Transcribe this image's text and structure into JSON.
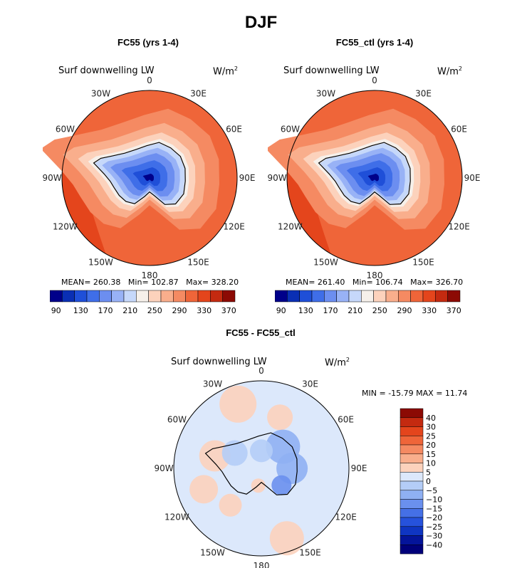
{
  "figure": {
    "title": "DJF"
  },
  "chart_data": [
    {
      "type": "heatmap",
      "title": "FC55 (yrs 1-4)",
      "variable": "Surf downwelling LW",
      "units_base": "W/m",
      "units_exp": "2",
      "projection": "south polar stereographic",
      "lon_labels": [
        "0",
        "30E",
        "60E",
        "90E",
        "120E",
        "150E",
        "180",
        "150W",
        "120W",
        "90W",
        "60W",
        "30W"
      ],
      "stats": {
        "mean_label": "MEAN=",
        "mean": "260.38",
        "min_label": "Min=",
        "min": "102.87",
        "max_label": "Max=",
        "max": "328.20"
      },
      "colorbar": {
        "levels": [
          90,
          110,
          130,
          150,
          170,
          190,
          210,
          230,
          250,
          270,
          290,
          310,
          330,
          350,
          370
        ],
        "labels": [
          "90",
          "130",
          "170",
          "210",
          "250",
          "290",
          "330",
          "370"
        ],
        "colors": [
          "#00008a",
          "#0a2fb4",
          "#1f4fd8",
          "#3f6ee8",
          "#6c8ef0",
          "#98b2f6",
          "#c6d8fa",
          "#f6f0ea",
          "#fcd2bc",
          "#f9ae8c",
          "#f58a62",
          "#ef6539",
          "#e4451c",
          "#c42a10",
          "#8c0a04"
        ]
      }
    },
    {
      "type": "heatmap",
      "title": "FC55_ctl (yrs 1-4)",
      "variable": "Surf downwelling LW",
      "units_base": "W/m",
      "units_exp": "2",
      "projection": "south polar stereographic",
      "lon_labels": [
        "0",
        "30E",
        "60E",
        "90E",
        "120E",
        "150E",
        "180",
        "150W",
        "120W",
        "90W",
        "60W",
        "30W"
      ],
      "stats": {
        "mean_label": "MEAN=",
        "mean": "261.40",
        "min_label": "Min=",
        "min": "106.74",
        "max_label": "Max=",
        "max": "326.70"
      },
      "colorbar": {
        "levels": [
          90,
          110,
          130,
          150,
          170,
          190,
          210,
          230,
          250,
          270,
          290,
          310,
          330,
          350,
          370
        ],
        "labels": [
          "90",
          "130",
          "170",
          "210",
          "250",
          "290",
          "330",
          "370"
        ],
        "colors": [
          "#00008a",
          "#0a2fb4",
          "#1f4fd8",
          "#3f6ee8",
          "#6c8ef0",
          "#98b2f6",
          "#c6d8fa",
          "#f6f0ea",
          "#fcd2bc",
          "#f9ae8c",
          "#f58a62",
          "#ef6539",
          "#e4451c",
          "#c42a10",
          "#8c0a04"
        ]
      }
    },
    {
      "type": "heatmap",
      "title": "FC55 - FC55_ctl",
      "variable": "Surf downwelling LW",
      "units_base": "W/m",
      "units_exp": "2",
      "projection": "south polar stereographic",
      "lon_labels": [
        "0",
        "30E",
        "60E",
        "90E",
        "120E",
        "150E",
        "180",
        "150W",
        "120W",
        "90W",
        "60W",
        "30W"
      ],
      "stats": {
        "min_label": "MIN =",
        "min": "-15.79",
        "max_label": "MAX =",
        "max": "11.74"
      },
      "colorbar": {
        "levels": [
          -40,
          -30,
          -25,
          -20,
          -15,
          -10,
          -5,
          0,
          5,
          10,
          15,
          20,
          25,
          30,
          40
        ],
        "labels": [
          "40",
          "30",
          "25",
          "20",
          "15",
          "10",
          "5",
          "0",
          "−5",
          "−10",
          "−15",
          "−20",
          "−25",
          "−30",
          "−40"
        ],
        "colors": [
          "#8c0a04",
          "#c42a10",
          "#e4451c",
          "#ef6539",
          "#f58a62",
          "#f9ae8c",
          "#fcd2bc",
          "#dce8fb",
          "#b4cdf7",
          "#8fb0f3",
          "#6a90ee",
          "#4570e6",
          "#2652dc",
          "#0f35c2",
          "#04149a",
          "#00007a"
        ]
      }
    }
  ]
}
